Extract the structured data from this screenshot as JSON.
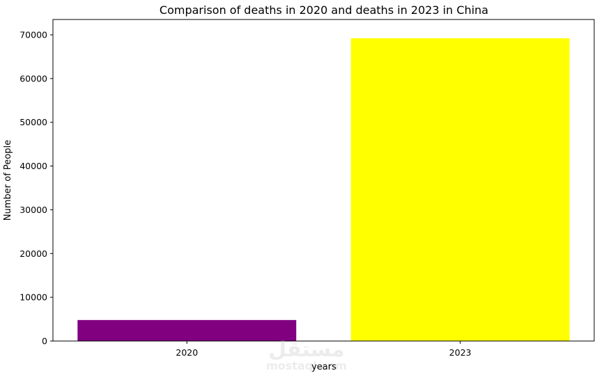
{
  "chart_data": {
    "type": "bar",
    "title": "Comparison of deaths in 2020 and deaths in 2023 in China",
    "xlabel": "years",
    "ylabel": "Number of People",
    "categories": [
      "2020",
      "2023"
    ],
    "values": [
      4800,
      69200
    ],
    "colors": [
      "#800080",
      "#ffff00"
    ],
    "ylim": [
      0,
      73500
    ],
    "yticks": [
      0,
      10000,
      20000,
      30000,
      40000,
      50000,
      60000,
      70000
    ],
    "grid": false
  },
  "watermark": {
    "arabic": "مستقل",
    "latin": "mostaql.com"
  }
}
